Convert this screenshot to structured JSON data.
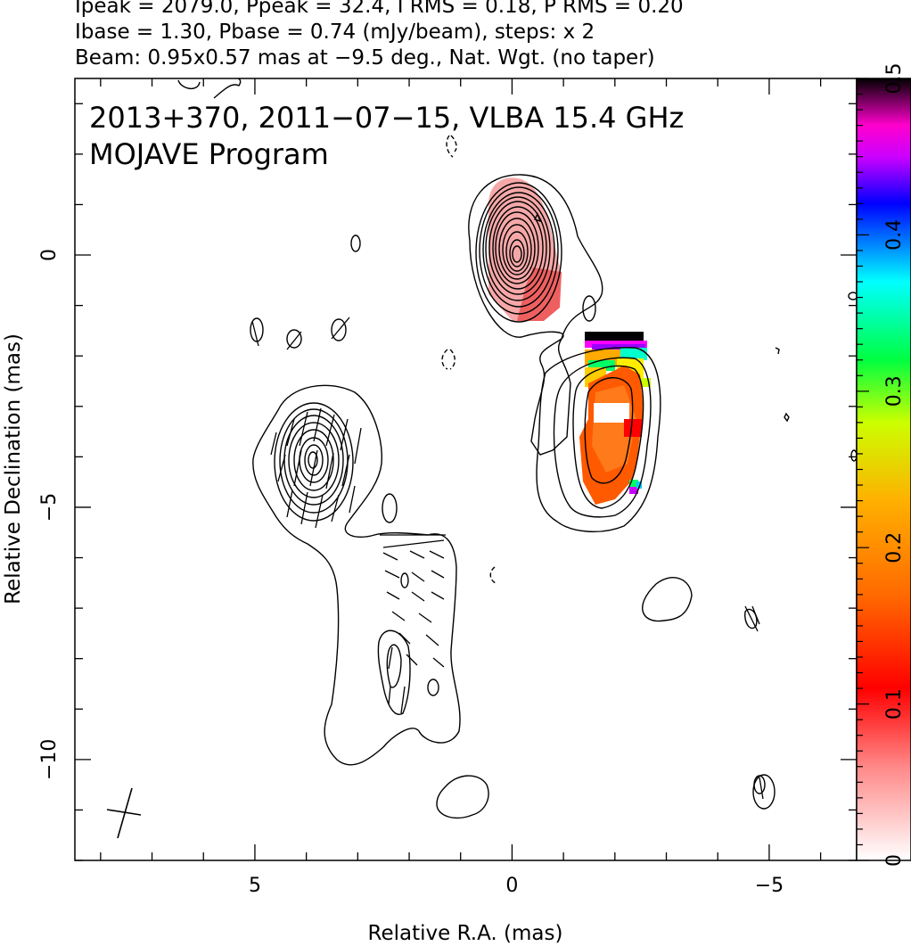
{
  "header": {
    "line1": "Ipeak = 2079.0, Ppeak = 32.4, I RMS = 0.18, P RMS = 0.20",
    "line2": "Ibase = 1.30, Pbase = 0.74 (mJy/beam), steps: x 2",
    "line3": "Beam: 0.95x0.57 mas at −9.5 deg., Nat. Wgt. (no taper)"
  },
  "chart_data": {
    "type": "heatmap",
    "title": "2013+370, 2011−07−15, VLBA 15.4 GHz",
    "subtitle": "MOJAVE Program",
    "xlabel": "Relative R.A. (mas)",
    "ylabel": "Relative Declination (mas)",
    "xlim": [
      8.5,
      -6.7
    ],
    "ylim": [
      -12.0,
      3.5
    ],
    "x_ticks": [
      5,
      0,
      -5
    ],
    "x_tick_labels": [
      "5",
      "0",
      "−5"
    ],
    "y_ticks": [
      0,
      -5,
      -10
    ],
    "y_tick_labels": [
      "0",
      "−5",
      "−10"
    ],
    "colorbar": {
      "range": [
        0,
        0.5
      ],
      "ticks": [
        0,
        0.1,
        0.2,
        0.3,
        0.4,
        0.5
      ],
      "tick_labels": [
        "0",
        "0.1",
        "0.2",
        "0.3",
        "0.4",
        "0.5"
      ]
    },
    "components": [
      {
        "name": "core",
        "ra": 0.0,
        "dec": 0.0,
        "n_contours": 13
      },
      {
        "name": "jet-knot-south-west",
        "ra": -2.0,
        "dec": -4.0,
        "n_contours": 4
      },
      {
        "name": "east-knot",
        "ra": 4.0,
        "dec": -4.2,
        "n_contours": 8
      },
      {
        "name": "south-east-extension",
        "ra": 2.5,
        "dec": -8.0,
        "n_contours": 2
      }
    ],
    "fractional_polarization_patches": [
      {
        "region": "core-south",
        "ra_range": [
          -0.9,
          0.4
        ],
        "dec_range": [
          -1.3,
          0.6
        ],
        "value": 0.05
      },
      {
        "region": "jet-knot",
        "ra_range": [
          -2.6,
          -1.3
        ],
        "dec_range": [
          -5.0,
          -1.5
        ],
        "value": 0.12
      },
      {
        "region": "jet-knot-top-edge",
        "ra_range": [
          -2.6,
          -1.3
        ],
        "dec_range": [
          -1.8,
          -1.5
        ],
        "value": 0.5
      }
    ],
    "beam": {
      "major_mas": 0.95,
      "minor_mas": 0.57,
      "pa_deg": -9.5
    }
  }
}
